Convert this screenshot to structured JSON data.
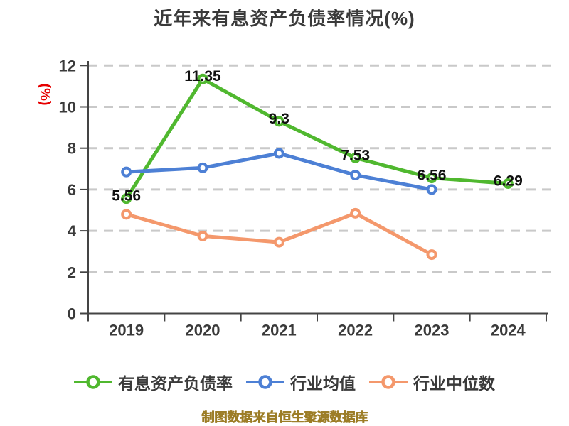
{
  "title": "近年来有息资产负债率情况(%)",
  "y_axis_name": "(%)",
  "watermark": "制图数据来自恒生聚源数据库",
  "colors": {
    "background": "#FFFFFF",
    "title": "#3A3A3A",
    "axis": "#444444",
    "grid": "#C9C9C9",
    "tick_label": "#3A3A3A",
    "data_label": "#111111",
    "y_name": "#E60000",
    "watermark": "#9C7D26",
    "marker_fill": "#FFFFFF"
  },
  "chart_data": {
    "type": "line",
    "title": "近年来有息资产负债率情况(%)",
    "categories": [
      "2019",
      "2020",
      "2021",
      "2022",
      "2023",
      "2024"
    ],
    "xlabel": "",
    "ylabel": "(%)",
    "ylim": [
      0,
      12
    ],
    "y_ticks": [
      0,
      2,
      4,
      6,
      8,
      10,
      12
    ],
    "grid": "horizontal-dashed",
    "legend_position": "bottom",
    "series": [
      {
        "name": "有息资产负债率",
        "color": "#50B82F",
        "values": [
          5.56,
          11.35,
          9.3,
          7.53,
          6.56,
          6.29
        ],
        "labels": [
          "5.56",
          "11.35",
          "9.3",
          "7.53",
          "6.56",
          "6.29"
        ]
      },
      {
        "name": "行业均值",
        "color": "#4D80D5",
        "values": [
          6.85,
          7.05,
          7.75,
          6.7,
          6.0
        ],
        "labels": []
      },
      {
        "name": "行业中位数",
        "color": "#F4986C",
        "values": [
          4.8,
          3.75,
          3.45,
          4.85,
          2.85
        ],
        "labels": []
      }
    ]
  }
}
